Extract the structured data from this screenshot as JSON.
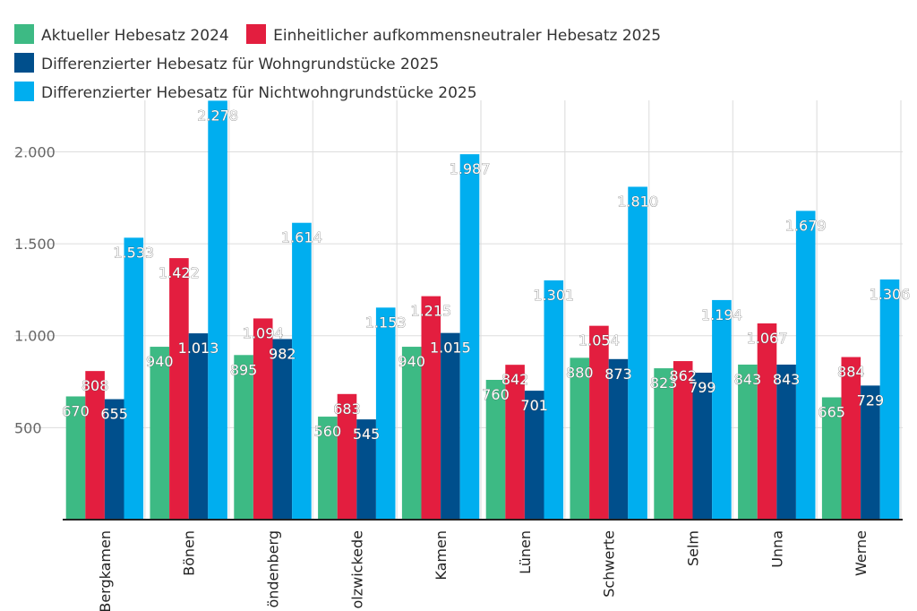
{
  "chart_data": {
    "type": "bar",
    "title": "",
    "xlabel": "",
    "ylabel": "",
    "ylim": [
      0,
      2280
    ],
    "y_ticks": [
      500,
      1000,
      1500,
      2000
    ],
    "y_tick_labels": [
      "500",
      "1.000",
      "1.500",
      "2.000"
    ],
    "grid": "vertical",
    "legend_position": "top",
    "categories": [
      "Bergkamen",
      "Bönen",
      "Fröndenberg",
      "Holzwickede",
      "Kamen",
      "Lünen",
      "Schwerte",
      "Selm",
      "Unna",
      "Werne"
    ],
    "category_labels": [
      "Bergkamen",
      "Bönen",
      "öndenberg",
      "olzwickede",
      "Kamen",
      "Lünen",
      "Schwerte",
      "Selm",
      "Unna",
      "Werne"
    ],
    "series": [
      {
        "name": "Aktueller Hebesatz 2024",
        "color": "#3dba84",
        "values": [
          670,
          940,
          895,
          560,
          940,
          760,
          880,
          823,
          843,
          665
        ],
        "labels": [
          "670",
          "940",
          "895",
          "560",
          "940",
          "760",
          "880",
          "823",
          "843",
          "665"
        ]
      },
      {
        "name": "Einheitlicher aufkommensneutraler Hebesatz 2025",
        "color": "#e31e3f",
        "values": [
          808,
          1422,
          1094,
          683,
          1215,
          842,
          1054,
          862,
          1067,
          884
        ],
        "labels": [
          "808",
          "1.422",
          "1.094",
          "683",
          "1.215",
          "842",
          "1.054",
          "862",
          "1.067",
          "884"
        ]
      },
      {
        "name": "Differenzierter Hebesatz für Wohngrundstücke 2025",
        "color": "#004f8c",
        "values": [
          655,
          1013,
          982,
          545,
          1015,
          701,
          873,
          799,
          843,
          729
        ],
        "labels": [
          "655",
          "1.013",
          "982",
          "545",
          "1.015",
          "701",
          "873",
          "799",
          "843",
          "729"
        ]
      },
      {
        "name": "Differenzierter Hebesatz für Nichtwohngrundstücke 2025",
        "color": "#00aeef",
        "values": [
          1533,
          2278,
          1614,
          1153,
          1987,
          1301,
          1810,
          1194,
          1679,
          1306
        ],
        "labels": [
          "1.533",
          "2.278",
          "1.614",
          "1.153",
          "1.987",
          "1.301",
          "1.810",
          "1.194",
          "1.679",
          "1.306"
        ]
      }
    ]
  }
}
